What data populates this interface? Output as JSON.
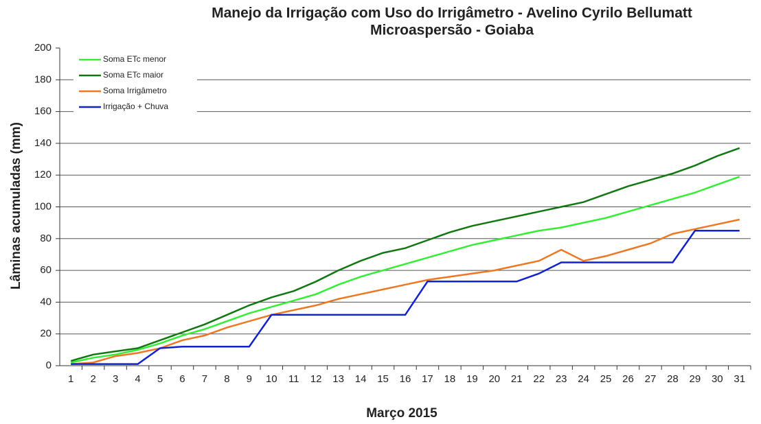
{
  "chart_data": {
    "type": "line",
    "title": "Manejo da Irrigação com Uso do Irrigâmetro - Avelino Cyrilo Bellumatt",
    "subtitle": "Microaspersão - Goiaba",
    "x_label": "Março 2015",
    "y_label": "Lâminas acumuladas (mm)",
    "categories": [
      "1",
      "2",
      "3",
      "4",
      "5",
      "6",
      "7",
      "8",
      "9",
      "10",
      "11",
      "12",
      "13",
      "14",
      "15",
      "16",
      "17",
      "18",
      "19",
      "20",
      "21",
      "22",
      "23",
      "24",
      "25",
      "26",
      "27",
      "28",
      "29",
      "30",
      "31"
    ],
    "series": [
      {
        "name": "Soma ETc menor",
        "color": "#33ee33",
        "values": [
          2,
          5,
          7,
          10,
          14,
          19,
          23,
          28,
          33,
          37,
          41,
          45,
          51,
          56,
          60,
          64,
          68,
          72,
          76,
          79,
          82,
          85,
          87,
          90,
          93,
          97,
          101,
          105,
          109,
          114,
          119
        ]
      },
      {
        "name": "Soma ETc maior",
        "color": "#117711",
        "values": [
          3,
          7,
          9,
          11,
          16,
          21,
          26,
          32,
          38,
          43,
          47,
          53,
          60,
          66,
          71,
          74,
          79,
          84,
          88,
          91,
          94,
          97,
          100,
          103,
          108,
          113,
          117,
          121,
          126,
          132,
          137
        ]
      },
      {
        "name": "Soma Irrigâmetro",
        "color": "#ee7722",
        "values": [
          1,
          2,
          6,
          8,
          11,
          16,
          19,
          24,
          28,
          32,
          35,
          38,
          42,
          45,
          48,
          51,
          54,
          56,
          58,
          60,
          63,
          66,
          73,
          66,
          69,
          73,
          77,
          83,
          86,
          89,
          92
        ]
      },
      {
        "name": "Irrigação + Chuva",
        "color": "#1122cc",
        "values": [
          1,
          1,
          1,
          1,
          11,
          12,
          12,
          12,
          12,
          32,
          32,
          32,
          32,
          32,
          32,
          32,
          53,
          53,
          53,
          53,
          53,
          58,
          65,
          65,
          65,
          65,
          65,
          65,
          85,
          85,
          85
        ]
      }
    ],
    "ylim": [
      0,
      200
    ],
    "yticks": [
      0,
      20,
      40,
      60,
      80,
      100,
      120,
      140,
      160,
      180,
      200
    ],
    "grid": true,
    "legend": "upper left"
  }
}
